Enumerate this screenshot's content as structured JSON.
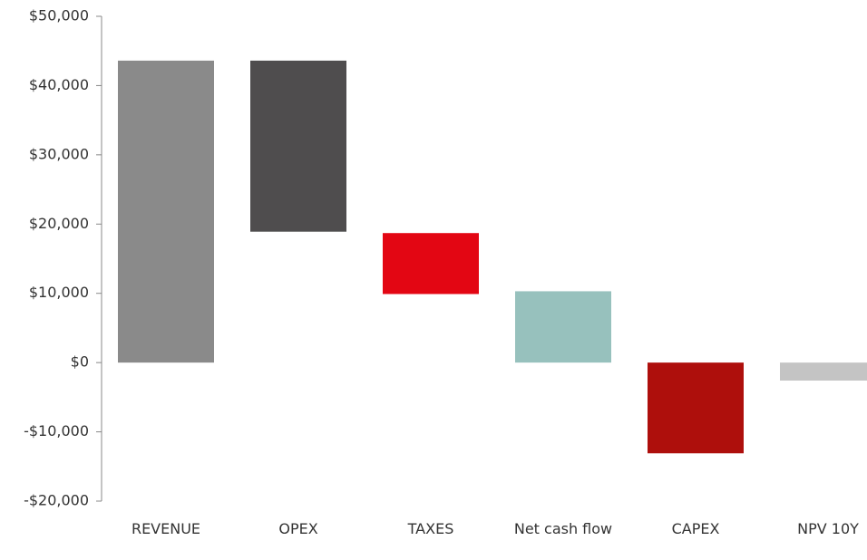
{
  "chart_data": {
    "type": "floating-bar",
    "categories": [
      "REVENUE",
      "OPEX",
      "TAXES",
      "Net cash flow",
      "CAPEX",
      "NPV 10Y"
    ],
    "starts": [
      0,
      43600,
      18700,
      0,
      0,
      0
    ],
    "ends": [
      43600,
      18900,
      9900,
      10300,
      -13100,
      -2600
    ],
    "colors": [
      "#8a8a8a",
      "#4f4d4e",
      "#e30613",
      "#97c1bd",
      "#ae0f0c",
      "#c4c4c4"
    ],
    "ylim": [
      -20000,
      50000
    ],
    "yticks": [
      {
        "value": -20000,
        "label": "-$20,000"
      },
      {
        "value": -10000,
        "label": "-$10,000"
      },
      {
        "value": 0,
        "label": "$0"
      },
      {
        "value": 10000,
        "label": "$10,000"
      },
      {
        "value": 20000,
        "label": "$20,000"
      },
      {
        "value": 30000,
        "label": "$30,000"
      },
      {
        "value": 40000,
        "label": "$40,000"
      },
      {
        "value": 50000,
        "label": "$50,000"
      }
    ]
  }
}
